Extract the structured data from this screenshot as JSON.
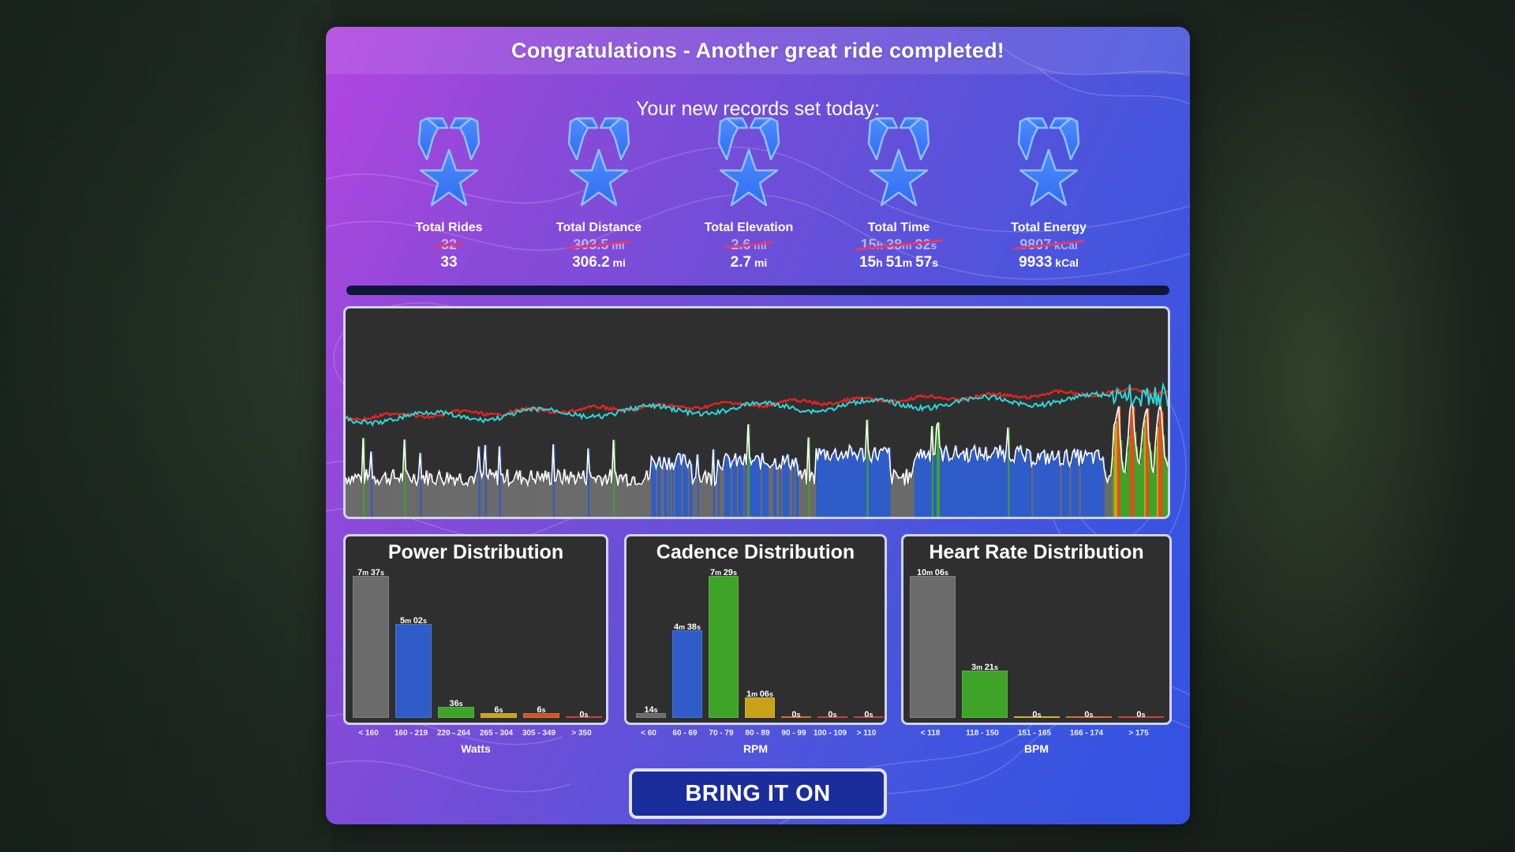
{
  "header": {
    "title": "Congratulations - Another great ride completed!"
  },
  "records": {
    "subtitle": "Your new records set today:",
    "items": [
      {
        "label": "Total Rides",
        "old": "32",
        "new": "33",
        "icon": "star-medal-icon",
        "old_parts": [
          {
            "v": "32",
            "u": ""
          }
        ],
        "new_parts": [
          {
            "v": "33",
            "u": ""
          }
        ]
      },
      {
        "label": "Total Distance",
        "old": "303.5 mi",
        "new": "306.2 mi",
        "icon": "star-medal-icon",
        "old_parts": [
          {
            "v": "303.5",
            "u": " mi"
          }
        ],
        "new_parts": [
          {
            "v": "306.2",
            "u": " mi"
          }
        ]
      },
      {
        "label": "Total Elevation",
        "old": "2.6 mi",
        "new": "2.7 mi",
        "icon": "star-medal-icon",
        "old_parts": [
          {
            "v": "2.6",
            "u": " mi"
          }
        ],
        "new_parts": [
          {
            "v": "2.7",
            "u": " mi"
          }
        ]
      },
      {
        "label": "Total Time",
        "old": "15h 38m 32s",
        "new": "15h 51m 57s",
        "icon": "star-medal-icon",
        "old_parts": [
          {
            "v": "15",
            "u": "h "
          },
          {
            "v": "38",
            "u": "m "
          },
          {
            "v": "32",
            "u": "s"
          }
        ],
        "new_parts": [
          {
            "v": "15",
            "u": "h "
          },
          {
            "v": "51",
            "u": "m "
          },
          {
            "v": "57",
            "u": "s"
          }
        ]
      },
      {
        "label": "Total Energy",
        "old": "9807 kCal",
        "new": "9933 kCal",
        "icon": "star-medal-icon",
        "old_parts": [
          {
            "v": "9807",
            "u": " kCal"
          }
        ],
        "new_parts": [
          {
            "v": "9933",
            "u": " kCal"
          }
        ]
      }
    ]
  },
  "ride_chart": {
    "series": [
      "power-area",
      "heart-rate-line",
      "cadence-line"
    ],
    "colors": {
      "power_base": "#6b6b6b",
      "power_z2": "#2f5cc8",
      "power_z3": "#3fa329",
      "power_z4": "#c9a21a",
      "power_z5": "#d3541c",
      "heart_rate": "#e02424",
      "cadence": "#2fd6d6",
      "power_line": "#ffffff"
    }
  },
  "distributions": {
    "power": {
      "title": "Power Distribution",
      "axis_label": "Watts",
      "bins": [
        {
          "tick": "< 160",
          "value": "7m 37s",
          "v1": "7",
          "u1": "m ",
          "v2": "37",
          "u2": "s",
          "seconds": 457,
          "color": "#6b6b6b"
        },
        {
          "tick": "160 - 219",
          "value": "5m 02s",
          "v1": "5",
          "u1": "m ",
          "v2": "02",
          "u2": "s",
          "seconds": 302,
          "color": "#2f5cc8"
        },
        {
          "tick": "220 - 264",
          "value": "36s",
          "v1": "36",
          "u1": "s",
          "v2": "",
          "u2": "",
          "seconds": 36,
          "color": "#3fa329"
        },
        {
          "tick": "265 - 304",
          "value": "6s",
          "v1": "6",
          "u1": "s",
          "v2": "",
          "u2": "",
          "seconds": 6,
          "color": "#c9a21a"
        },
        {
          "tick": "305 - 349",
          "value": "6s",
          "v1": "6",
          "u1": "s",
          "v2": "",
          "u2": "",
          "seconds": 6,
          "color": "#d3541c"
        },
        {
          "tick": "> 350",
          "value": "0s",
          "v1": "0",
          "u1": "s",
          "v2": "",
          "u2": "",
          "seconds": 0,
          "color": "#c02020"
        }
      ]
    },
    "cadence": {
      "title": "Cadence Distribution",
      "axis_label": "RPM",
      "bins": [
        {
          "tick": "< 60",
          "value": "14s",
          "v1": "14",
          "u1": "s",
          "v2": "",
          "u2": "",
          "seconds": 14,
          "color": "#6b6b6b"
        },
        {
          "tick": "60 - 69",
          "value": "4m 38s",
          "v1": "4",
          "u1": "m ",
          "v2": "38",
          "u2": "s",
          "seconds": 278,
          "color": "#2f5cc8"
        },
        {
          "tick": "70 - 79",
          "value": "7m 29s",
          "v1": "7",
          "u1": "m ",
          "v2": "29",
          "u2": "s",
          "seconds": 449,
          "color": "#3fa329"
        },
        {
          "tick": "80 - 89",
          "value": "1m 06s",
          "v1": "1",
          "u1": "m ",
          "v2": "06",
          "u2": "s",
          "seconds": 66,
          "color": "#c9a21a"
        },
        {
          "tick": "90 - 99",
          "value": "0s",
          "v1": "0",
          "u1": "s",
          "v2": "",
          "u2": "",
          "seconds": 0,
          "color": "#d3541c"
        },
        {
          "tick": "100 - 109",
          "value": "0s",
          "v1": "0",
          "u1": "s",
          "v2": "",
          "u2": "",
          "seconds": 0,
          "color": "#c02020"
        },
        {
          "tick": "> 110",
          "value": "0s",
          "v1": "0",
          "u1": "s",
          "v2": "",
          "u2": "",
          "seconds": 0,
          "color": "#c02020"
        }
      ]
    },
    "heart_rate": {
      "title": "Heart Rate Distribution",
      "axis_label": "BPM",
      "bins": [
        {
          "tick": "< 118",
          "value": "10m 06s",
          "v1": "10",
          "u1": "m ",
          "v2": "06",
          "u2": "s",
          "seconds": 606,
          "color": "#6b6b6b"
        },
        {
          "tick": "118 - 150",
          "value": "3m 21s",
          "v1": "3",
          "u1": "m ",
          "v2": "21",
          "u2": "s",
          "seconds": 201,
          "color": "#3fa329"
        },
        {
          "tick": "151 - 165",
          "value": "0s",
          "v1": "0",
          "u1": "s",
          "v2": "",
          "u2": "",
          "seconds": 0,
          "color": "#c9a21a"
        },
        {
          "tick": "166 - 174",
          "value": "0s",
          "v1": "0",
          "u1": "s",
          "v2": "",
          "u2": "",
          "seconds": 0,
          "color": "#d3541c"
        },
        {
          "tick": "> 175",
          "value": "0s",
          "v1": "0",
          "u1": "s",
          "v2": "",
          "u2": "",
          "seconds": 0,
          "color": "#c02020"
        }
      ]
    }
  },
  "cta": {
    "label": "BRING IT ON"
  }
}
